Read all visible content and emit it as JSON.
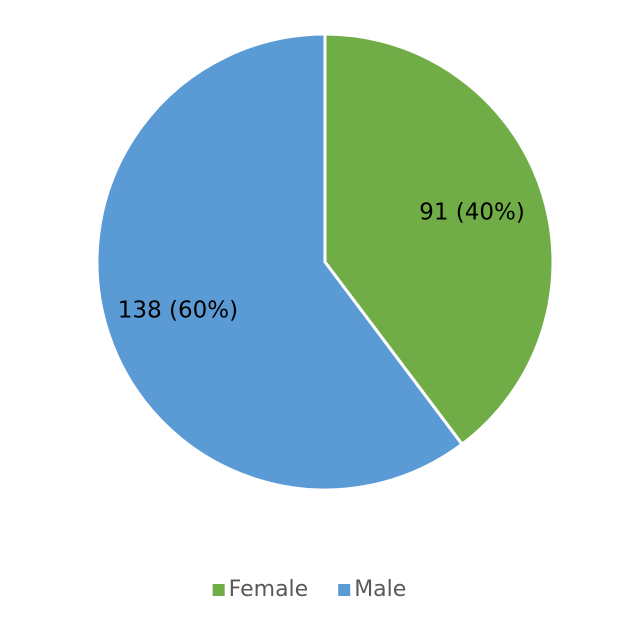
{
  "chart_data": {
    "type": "pie",
    "categories": [
      "Female",
      "Male"
    ],
    "values": [
      91,
      138
    ],
    "value_labels": [
      "91 (40%)",
      "138 (60%)"
    ],
    "colors": [
      "#70ad47",
      "#5b9bd5"
    ],
    "legend": "bottom"
  }
}
